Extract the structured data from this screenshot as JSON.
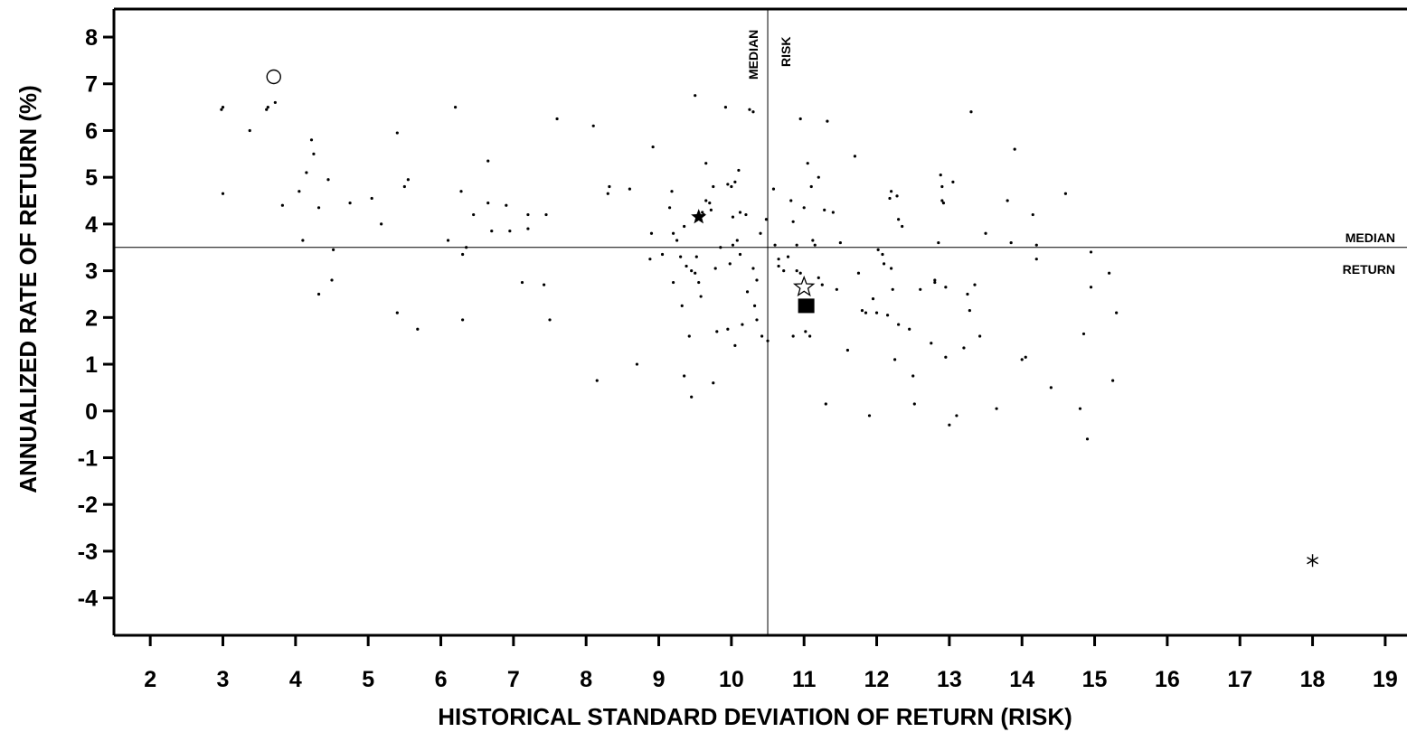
{
  "chart_data": {
    "type": "scatter",
    "xlabel": "HISTORICAL STANDARD DEVIATION OF RETURN (RISK)",
    "ylabel": "ANNUALIZED RATE OF RETURN (%)",
    "xlim": [
      1.5,
      19.3
    ],
    "ylim": [
      -4.8,
      8.6
    ],
    "x_ticks": [
      2,
      3,
      4,
      5,
      6,
      7,
      8,
      9,
      10,
      11,
      12,
      13,
      14,
      15,
      16,
      17,
      18,
      19
    ],
    "y_ticks": [
      8,
      7,
      6,
      5,
      4,
      3,
      2,
      1,
      0,
      -1,
      -2,
      -3,
      -4
    ],
    "grid": false,
    "median_risk": {
      "value": 10.5,
      "label_line1": "MEDIAN",
      "label_line2": "RISK"
    },
    "median_return": {
      "value": 3.5,
      "label_line1": "MEDIAN",
      "label_line2": "RETURN"
    },
    "highlighted_points": [
      {
        "marker": "open-circle",
        "x": 3.7,
        "y": 7.15
      },
      {
        "marker": "filled-star",
        "x": 9.55,
        "y": 4.15
      },
      {
        "marker": "open-star",
        "x": 11.0,
        "y": 2.65
      },
      {
        "marker": "filled-square",
        "x": 11.03,
        "y": 2.25
      },
      {
        "marker": "asterisk",
        "x": 18.0,
        "y": -3.2
      }
    ],
    "points": [
      [
        2.98,
        6.45
      ],
      [
        3.0,
        6.5
      ],
      [
        3.0,
        4.65
      ],
      [
        3.37,
        6.0
      ],
      [
        3.6,
        6.45
      ],
      [
        3.62,
        6.5
      ],
      [
        3.72,
        6.6
      ],
      [
        3.82,
        4.4
      ],
      [
        4.05,
        4.7
      ],
      [
        4.1,
        3.65
      ],
      [
        4.15,
        5.1
      ],
      [
        4.22,
        5.8
      ],
      [
        4.25,
        5.5
      ],
      [
        4.32,
        4.35
      ],
      [
        4.32,
        2.5
      ],
      [
        4.45,
        4.95
      ],
      [
        4.5,
        2.8
      ],
      [
        4.52,
        3.45
      ],
      [
        4.75,
        4.45
      ],
      [
        5.05,
        4.55
      ],
      [
        5.18,
        4.0
      ],
      [
        5.4,
        5.95
      ],
      [
        5.4,
        2.1
      ],
      [
        5.5,
        4.8
      ],
      [
        5.55,
        4.95
      ],
      [
        5.68,
        1.75
      ],
      [
        6.1,
        3.65
      ],
      [
        6.2,
        6.5
      ],
      [
        6.28,
        4.7
      ],
      [
        6.3,
        3.35
      ],
      [
        6.3,
        1.95
      ],
      [
        6.35,
        3.5
      ],
      [
        6.45,
        4.2
      ],
      [
        6.65,
        5.35
      ],
      [
        6.65,
        4.45
      ],
      [
        6.7,
        3.85
      ],
      [
        6.9,
        4.4
      ],
      [
        6.95,
        3.85
      ],
      [
        7.12,
        2.75
      ],
      [
        7.2,
        4.2
      ],
      [
        7.2,
        3.9
      ],
      [
        7.42,
        2.7
      ],
      [
        7.45,
        4.2
      ],
      [
        7.5,
        1.95
      ],
      [
        7.6,
        6.25
      ],
      [
        8.1,
        6.1
      ],
      [
        8.15,
        0.65
      ],
      [
        8.3,
        4.65
      ],
      [
        8.32,
        4.8
      ],
      [
        8.6,
        4.75
      ],
      [
        8.7,
        1.0
      ],
      [
        8.88,
        3.25
      ],
      [
        8.9,
        3.8
      ],
      [
        8.92,
        5.65
      ],
      [
        9.05,
        3.35
      ],
      [
        9.15,
        4.35
      ],
      [
        9.18,
        4.7
      ],
      [
        9.2,
        3.8
      ],
      [
        9.2,
        2.75
      ],
      [
        9.25,
        3.65
      ],
      [
        9.3,
        3.3
      ],
      [
        9.32,
        2.25
      ],
      [
        9.35,
        0.75
      ],
      [
        9.35,
        3.95
      ],
      [
        9.38,
        3.1
      ],
      [
        9.42,
        1.6
      ],
      [
        9.45,
        3.0
      ],
      [
        9.45,
        0.3
      ],
      [
        9.5,
        2.95
      ],
      [
        9.5,
        6.75
      ],
      [
        9.52,
        3.3
      ],
      [
        9.55,
        2.75
      ],
      [
        9.58,
        2.45
      ],
      [
        9.6,
        4.25
      ],
      [
        9.62,
        4.2
      ],
      [
        9.65,
        5.3
      ],
      [
        9.65,
        4.5
      ],
      [
        9.7,
        4.45
      ],
      [
        9.72,
        4.3
      ],
      [
        9.75,
        0.6
      ],
      [
        9.75,
        4.8
      ],
      [
        9.78,
        3.05
      ],
      [
        9.8,
        1.7
      ],
      [
        9.85,
        3.5
      ],
      [
        9.92,
        6.5
      ],
      [
        9.95,
        4.85
      ],
      [
        9.95,
        1.75
      ],
      [
        9.98,
        3.15
      ],
      [
        10.0,
        4.8
      ],
      [
        10.02,
        4.15
      ],
      [
        10.02,
        3.55
      ],
      [
        10.05,
        4.9
      ],
      [
        10.05,
        1.4
      ],
      [
        10.08,
        3.65
      ],
      [
        10.1,
        5.15
      ],
      [
        10.12,
        4.25
      ],
      [
        10.12,
        3.35
      ],
      [
        10.15,
        1.85
      ],
      [
        10.2,
        4.2
      ],
      [
        10.22,
        2.55
      ],
      [
        10.25,
        6.45
      ],
      [
        10.3,
        6.4
      ],
      [
        10.3,
        3.05
      ],
      [
        10.32,
        2.25
      ],
      [
        10.35,
        2.8
      ],
      [
        10.35,
        1.95
      ],
      [
        10.4,
        3.8
      ],
      [
        10.42,
        1.6
      ],
      [
        10.48,
        4.1
      ],
      [
        10.5,
        1.5
      ],
      [
        10.58,
        4.75
      ],
      [
        10.6,
        3.55
      ],
      [
        10.65,
        3.1
      ],
      [
        10.65,
        3.25
      ],
      [
        10.72,
        3.0
      ],
      [
        10.78,
        3.3
      ],
      [
        10.82,
        4.5
      ],
      [
        10.85,
        4.05
      ],
      [
        10.85,
        1.6
      ],
      [
        10.9,
        3.55
      ],
      [
        10.9,
        3.0
      ],
      [
        10.95,
        2.95
      ],
      [
        10.95,
        6.25
      ],
      [
        11.0,
        4.35
      ],
      [
        11.02,
        1.7
      ],
      [
        11.05,
        5.3
      ],
      [
        11.08,
        1.6
      ],
      [
        11.1,
        4.8
      ],
      [
        11.12,
        3.65
      ],
      [
        11.15,
        3.55
      ],
      [
        11.2,
        2.85
      ],
      [
        11.2,
        5.0
      ],
      [
        11.25,
        2.7
      ],
      [
        11.28,
        4.3
      ],
      [
        11.3,
        0.15
      ],
      [
        11.32,
        6.2
      ],
      [
        11.4,
        4.25
      ],
      [
        11.45,
        2.6
      ],
      [
        11.5,
        3.6
      ],
      [
        11.6,
        1.3
      ],
      [
        11.7,
        5.45
      ],
      [
        11.75,
        2.95
      ],
      [
        11.8,
        2.15
      ],
      [
        11.85,
        2.1
      ],
      [
        11.9,
        -0.1
      ],
      [
        11.95,
        2.4
      ],
      [
        12.0,
        2.1
      ],
      [
        12.02,
        3.45
      ],
      [
        12.08,
        3.35
      ],
      [
        12.1,
        3.15
      ],
      [
        12.15,
        2.05
      ],
      [
        12.18,
        4.55
      ],
      [
        12.2,
        4.7
      ],
      [
        12.2,
        3.05
      ],
      [
        12.22,
        2.6
      ],
      [
        12.25,
        1.1
      ],
      [
        12.28,
        4.6
      ],
      [
        12.3,
        1.85
      ],
      [
        12.3,
        4.1
      ],
      [
        12.35,
        3.95
      ],
      [
        12.45,
        1.75
      ],
      [
        12.5,
        0.75
      ],
      [
        12.52,
        0.15
      ],
      [
        12.6,
        2.6
      ],
      [
        12.75,
        1.45
      ],
      [
        12.8,
        2.75
      ],
      [
        12.8,
        2.8
      ],
      [
        12.85,
        3.6
      ],
      [
        12.88,
        5.05
      ],
      [
        12.9,
        4.8
      ],
      [
        12.9,
        4.5
      ],
      [
        12.92,
        4.45
      ],
      [
        12.95,
        1.15
      ],
      [
        12.95,
        2.65
      ],
      [
        13.0,
        -0.3
      ],
      [
        13.05,
        4.9
      ],
      [
        13.1,
        -0.1
      ],
      [
        13.2,
        1.35
      ],
      [
        13.25,
        2.5
      ],
      [
        13.28,
        2.15
      ],
      [
        13.3,
        6.4
      ],
      [
        13.35,
        2.7
      ],
      [
        13.42,
        1.6
      ],
      [
        13.5,
        3.8
      ],
      [
        13.65,
        0.05
      ],
      [
        13.8,
        4.5
      ],
      [
        13.85,
        3.6
      ],
      [
        13.9,
        5.6
      ],
      [
        14.0,
        1.1
      ],
      [
        14.05,
        1.15
      ],
      [
        14.15,
        4.2
      ],
      [
        14.2,
        3.55
      ],
      [
        14.2,
        3.25
      ],
      [
        14.4,
        0.5
      ],
      [
        14.6,
        4.65
      ],
      [
        14.8,
        0.05
      ],
      [
        14.85,
        1.65
      ],
      [
        14.9,
        -0.6
      ],
      [
        14.95,
        2.65
      ],
      [
        14.95,
        3.4
      ],
      [
        15.2,
        2.95
      ],
      [
        15.25,
        0.65
      ],
      [
        15.3,
        2.1
      ]
    ]
  }
}
